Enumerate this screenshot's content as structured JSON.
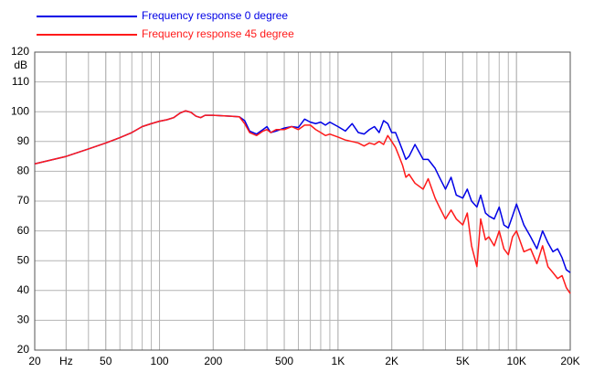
{
  "chart_data": {
    "type": "line",
    "legend": "top-left",
    "y_label": "dB",
    "xscale": "log",
    "grid": true,
    "minor_grid": true,
    "xlim": [
      20,
      20000
    ],
    "ylim": [
      20,
      120
    ],
    "xticks": [
      20,
      {
        "value": 30,
        "label": "Hz"
      },
      50,
      100,
      200,
      500,
      {
        "value": 1000,
        "label": "1K"
      },
      {
        "value": 2000,
        "label": "2K"
      },
      {
        "value": 5000,
        "label": "5K"
      },
      {
        "value": 10000,
        "label": "10K"
      },
      {
        "value": 20000,
        "label": "20K"
      }
    ],
    "yticks": [
      20,
      30,
      40,
      50,
      60,
      70,
      80,
      90,
      100,
      110,
      120
    ],
    "x": [
      20,
      30,
      40,
      50,
      60,
      70,
      80,
      90,
      100,
      110,
      120,
      130,
      140,
      150,
      160,
      170,
      180,
      200,
      250,
      280,
      300,
      320,
      350,
      380,
      400,
      420,
      450,
      500,
      550,
      600,
      650,
      700,
      750,
      800,
      850,
      900,
      1000,
      1100,
      1200,
      1300,
      1400,
      1500,
      1600,
      1700,
      1800,
      1900,
      2000,
      2100,
      2200,
      2300,
      2400,
      2500,
      2700,
      3000,
      3200,
      3500,
      3700,
      4000,
      4300,
      4600,
      5000,
      5300,
      5600,
      6000,
      6300,
      6700,
      7000,
      7500,
      8000,
      8500,
      9000,
      9500,
      10000,
      11000,
      12000,
      13000,
      14000,
      15000,
      16000,
      17000,
      18000,
      19000,
      20000
    ],
    "series": [
      {
        "name": "Frequency response 0 degree",
        "color": "#0000e6",
        "values": [
          82.5,
          85,
          87.5,
          89.5,
          91.3,
          93,
          95,
          96,
          96.8,
          97.3,
          98,
          99.5,
          100.3,
          99.8,
          98.5,
          98,
          98.8,
          98.8,
          98.5,
          98.3,
          97,
          93.5,
          92.5,
          94,
          95,
          93,
          93.5,
          94.5,
          95,
          94.7,
          97.5,
          96.5,
          96,
          96.5,
          95.5,
          96.5,
          95,
          93.5,
          96,
          93,
          92.5,
          94,
          95,
          93,
          97,
          96,
          93,
          93,
          90,
          87,
          84,
          85,
          89,
          84,
          84,
          81,
          78,
          74,
          78,
          72,
          71,
          74,
          70,
          68,
          72,
          66,
          65,
          64,
          68,
          62,
          61,
          65,
          69,
          62,
          58,
          54,
          60,
          56,
          53,
          54,
          51,
          47,
          46
        ]
      },
      {
        "name": "Frequency response 45 degree",
        "color": "#ff1a1a",
        "values": [
          82.5,
          85,
          87.5,
          89.5,
          91.3,
          93,
          95,
          96,
          96.8,
          97.3,
          98,
          99.5,
          100.3,
          99.8,
          98.5,
          98,
          98.8,
          98.8,
          98.5,
          98.3,
          96,
          93,
          92,
          93.5,
          94,
          93,
          94,
          94,
          95,
          94,
          95.5,
          95.5,
          94,
          93,
          92,
          92.5,
          91.5,
          90.5,
          90,
          89.5,
          88.5,
          89.5,
          89,
          90,
          89,
          92,
          90,
          88,
          85,
          82,
          78,
          79,
          76,
          74,
          77.5,
          71,
          68,
          64,
          67,
          64,
          62,
          66,
          55,
          48,
          64,
          57,
          58,
          55,
          60,
          54,
          52,
          58,
          60,
          53,
          54,
          49,
          55,
          48,
          46,
          44,
          45,
          41,
          39
        ]
      }
    ]
  }
}
